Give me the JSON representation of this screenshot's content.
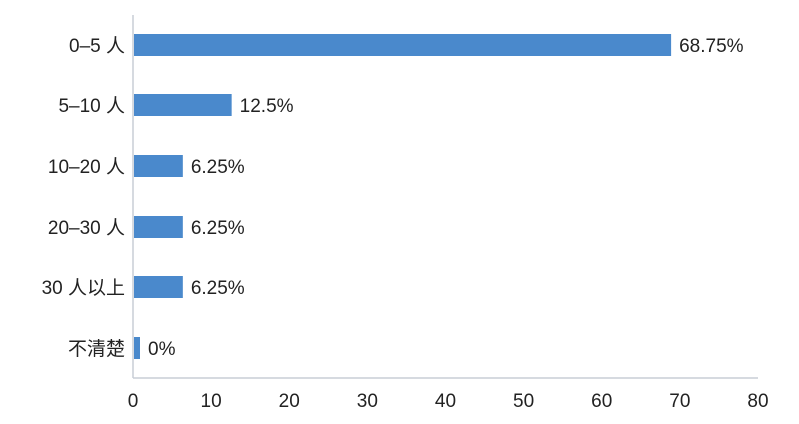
{
  "chart_data": {
    "type": "bar",
    "orientation": "horizontal",
    "categories": [
      "0–5 人",
      "5–10 人",
      "10–20 人",
      "20–30 人",
      "30 人以上",
      "不清楚"
    ],
    "values": [
      68.75,
      12.5,
      6.25,
      6.25,
      6.25,
      0
    ],
    "data_labels": [
      "68.75%",
      "12.5%",
      "6.25%",
      "6.25%",
      "6.25%",
      "0%"
    ],
    "xlim": [
      0,
      80
    ],
    "x_ticks": [
      0,
      10,
      20,
      30,
      40,
      50,
      60,
      70,
      80
    ],
    "title": "",
    "xlabel": "",
    "ylabel": "",
    "grid": false,
    "legend": "none",
    "bar_color": "#4a89cc",
    "axis_color": "#c8cdd6"
  }
}
